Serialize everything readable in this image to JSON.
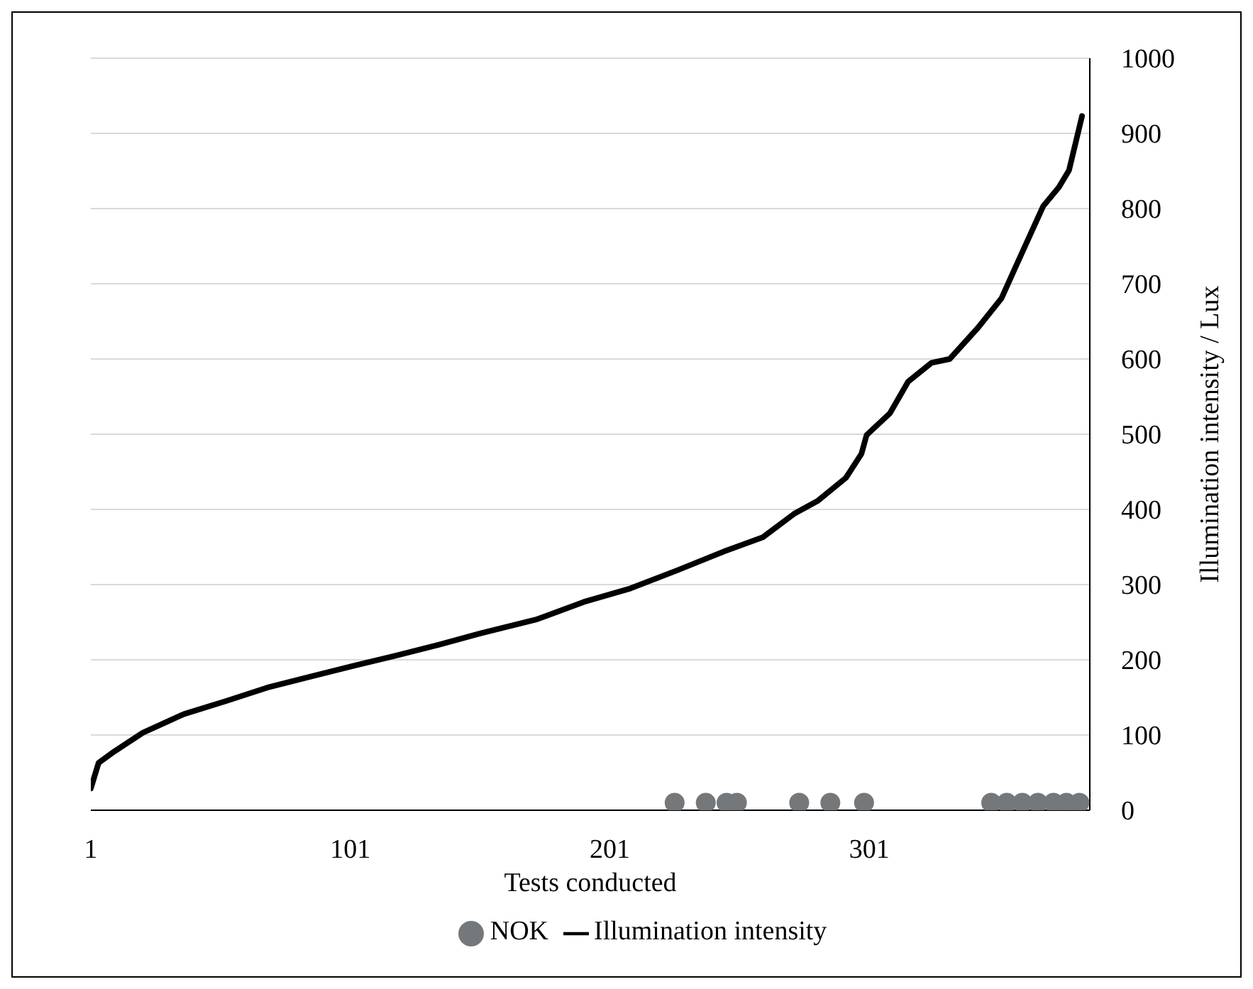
{
  "chart_data": {
    "type": "line",
    "xlabel": "Tests conducted",
    "ylabel": "Illumination intensity / Lux",
    "xlim": [
      1,
      386
    ],
    "xticks": [
      1,
      101,
      201,
      301
    ],
    "ylim": [
      0,
      1000
    ],
    "yticks": [
      0,
      100,
      200,
      300,
      400,
      500,
      600,
      700,
      800,
      900,
      1000
    ],
    "grid": "y",
    "legend": "bottom",
    "series": [
      {
        "name": "NOK",
        "type": "scatter",
        "marker": "circle",
        "color": "#75787b",
        "x": [
          226,
          238,
          246,
          250,
          274,
          286,
          299,
          348,
          354,
          360,
          366,
          372,
          377,
          382
        ],
        "values": [
          10,
          10,
          10,
          10,
          10,
          10,
          10,
          10,
          10,
          10,
          10,
          10,
          10,
          10
        ]
      },
      {
        "name": "Illumination intensity",
        "color": "#000000",
        "line_style": "solid",
        "x": [
          1,
          4,
          10,
          21,
          37,
          53,
          69,
          86,
          101,
          118,
          135,
          151,
          173,
          191,
          209,
          227,
          245,
          260,
          272,
          281,
          292,
          298,
          300,
          309,
          316,
          325,
          332,
          343,
          352,
          358,
          363,
          368,
          374,
          378,
          383
        ],
        "values": [
          29,
          63,
          78,
          103,
          128,
          145,
          163,
          178,
          191,
          205,
          220,
          235,
          254,
          277,
          295,
          319,
          344,
          363,
          394,
          411,
          442,
          474,
          499,
          528,
          570,
          595,
          600,
          642,
          681,
          727,
          765,
          803,
          828,
          851,
          923
        ]
      }
    ]
  }
}
